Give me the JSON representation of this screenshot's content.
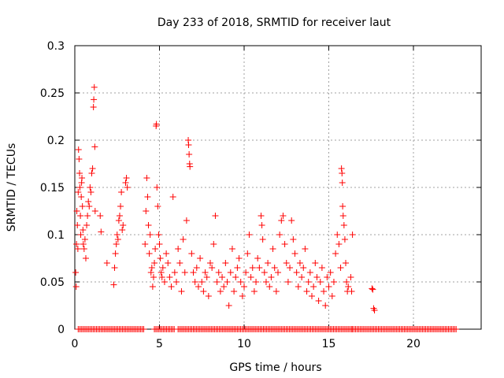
{
  "chart_data": {
    "type": "scatter",
    "title": "Day 233 of 2018, SRMTID for receiver laut",
    "xlabel": "GPS time / hours",
    "ylabel": "SRMTID / TECUs",
    "xlim": [
      0,
      24
    ],
    "ylim": [
      0,
      0.3
    ],
    "xticks": [
      0,
      5,
      10,
      15,
      20
    ],
    "xtick_labels": [
      "0",
      "5",
      "10",
      "15",
      "20"
    ],
    "yticks": [
      0,
      0.05,
      0.1,
      0.15,
      0.2,
      0.25,
      0.3
    ],
    "ytick_labels": [
      "0",
      "0.05",
      "0.1",
      "0.15",
      "0.2",
      "0.25",
      "0.3"
    ],
    "grid": true,
    "marker": "+",
    "color": "#ff0000",
    "series": [
      {
        "name": "SRMTID",
        "points": [
          [
            0.05,
            0.06
          ],
          [
            0.08,
            0.045
          ],
          [
            0.1,
            0.09
          ],
          [
            0.12,
            0.125
          ],
          [
            0.15,
            0.11
          ],
          [
            0.18,
            0.085
          ],
          [
            0.2,
            0.145
          ],
          [
            0.22,
            0.19
          ],
          [
            0.25,
            0.18
          ],
          [
            0.28,
            0.165
          ],
          [
            0.3,
            0.15
          ],
          [
            0.33,
            0.12
          ],
          [
            0.35,
            0.1
          ],
          [
            0.38,
            0.14
          ],
          [
            0.4,
            0.155
          ],
          [
            0.42,
            0.16
          ],
          [
            0.45,
            0.13
          ],
          [
            0.48,
            0.105
          ],
          [
            0.5,
            0.09
          ],
          [
            0.55,
            0.085
          ],
          [
            0.6,
            0.095
          ],
          [
            0.65,
            0.075
          ],
          [
            0.7,
            0.11
          ],
          [
            0.75,
            0.12
          ],
          [
            0.8,
            0.135
          ],
          [
            0.85,
            0.13
          ],
          [
            0.9,
            0.15
          ],
          [
            0.95,
            0.145
          ],
          [
            1.0,
            0.165
          ],
          [
            1.05,
            0.17
          ],
          [
            1.1,
            0.235
          ],
          [
            1.12,
            0.243
          ],
          [
            1.15,
            0.256
          ],
          [
            1.18,
            0.193
          ],
          [
            1.2,
            0.125
          ],
          [
            1.5,
            0.12
          ],
          [
            1.55,
            0.103
          ],
          [
            1.9,
            0.07
          ],
          [
            2.3,
            0.047
          ],
          [
            2.35,
            0.065
          ],
          [
            2.4,
            0.08
          ],
          [
            2.45,
            0.09
          ],
          [
            2.5,
            0.1
          ],
          [
            2.55,
            0.095
          ],
          [
            2.6,
            0.115
          ],
          [
            2.65,
            0.12
          ],
          [
            2.7,
            0.13
          ],
          [
            2.75,
            0.145
          ],
          [
            2.8,
            0.105
          ],
          [
            2.85,
            0.11
          ],
          [
            3.0,
            0.155
          ],
          [
            3.05,
            0.16
          ],
          [
            3.1,
            0.15
          ],
          [
            4.15,
            0.09
          ],
          [
            4.2,
            0.125
          ],
          [
            4.25,
            0.16
          ],
          [
            4.3,
            0.14
          ],
          [
            4.35,
            0.11
          ],
          [
            4.4,
            0.08
          ],
          [
            4.45,
            0.1
          ],
          [
            4.5,
            0.06
          ],
          [
            4.55,
            0.065
          ],
          [
            4.6,
            0.045
          ],
          [
            4.65,
            0.055
          ],
          [
            4.7,
            0.07
          ],
          [
            4.75,
            0.085
          ],
          [
            4.8,
            0.215
          ],
          [
            4.82,
            0.217
          ],
          [
            4.85,
            0.15
          ],
          [
            4.9,
            0.13
          ],
          [
            4.95,
            0.1
          ],
          [
            5.0,
            0.09
          ],
          [
            5.05,
            0.075
          ],
          [
            5.1,
            0.06
          ],
          [
            5.15,
            0.055
          ],
          [
            5.2,
            0.065
          ],
          [
            5.3,
            0.05
          ],
          [
            5.4,
            0.08
          ],
          [
            5.5,
            0.07
          ],
          [
            5.6,
            0.055
          ],
          [
            5.7,
            0.045
          ],
          [
            5.8,
            0.14
          ],
          [
            5.9,
            0.06
          ],
          [
            6.0,
            0.05
          ],
          [
            6.1,
            0.085
          ],
          [
            6.2,
            0.07
          ],
          [
            6.3,
            0.04
          ],
          [
            6.4,
            0.095
          ],
          [
            6.5,
            0.06
          ],
          [
            6.6,
            0.115
          ],
          [
            6.7,
            0.2
          ],
          [
            6.72,
            0.195
          ],
          [
            6.75,
            0.185
          ],
          [
            6.78,
            0.175
          ],
          [
            6.8,
            0.172
          ],
          [
            6.9,
            0.08
          ],
          [
            7.0,
            0.06
          ],
          [
            7.1,
            0.05
          ],
          [
            7.2,
            0.065
          ],
          [
            7.3,
            0.045
          ],
          [
            7.4,
            0.075
          ],
          [
            7.5,
            0.05
          ],
          [
            7.6,
            0.04
          ],
          [
            7.7,
            0.06
          ],
          [
            7.8,
            0.055
          ],
          [
            7.9,
            0.035
          ],
          [
            8.0,
            0.07
          ],
          [
            8.1,
            0.065
          ],
          [
            8.2,
            0.09
          ],
          [
            8.3,
            0.12
          ],
          [
            8.4,
            0.05
          ],
          [
            8.5,
            0.06
          ],
          [
            8.6,
            0.04
          ],
          [
            8.7,
            0.055
          ],
          [
            8.8,
            0.045
          ],
          [
            8.9,
            0.07
          ],
          [
            9.0,
            0.05
          ],
          [
            9.1,
            0.025
          ],
          [
            9.2,
            0.06
          ],
          [
            9.3,
            0.085
          ],
          [
            9.4,
            0.04
          ],
          [
            9.5,
            0.055
          ],
          [
            9.6,
            0.065
          ],
          [
            9.7,
            0.075
          ],
          [
            9.8,
            0.05
          ],
          [
            9.9,
            0.035
          ],
          [
            10.0,
            0.045
          ],
          [
            10.1,
            0.06
          ],
          [
            10.2,
            0.08
          ],
          [
            10.3,
            0.1
          ],
          [
            10.4,
            0.055
          ],
          [
            10.5,
            0.065
          ],
          [
            10.6,
            0.04
          ],
          [
            10.7,
            0.05
          ],
          [
            10.8,
            0.075
          ],
          [
            10.9,
            0.065
          ],
          [
            11.0,
            0.12
          ],
          [
            11.05,
            0.11
          ],
          [
            11.1,
            0.095
          ],
          [
            11.2,
            0.06
          ],
          [
            11.3,
            0.05
          ],
          [
            11.4,
            0.07
          ],
          [
            11.5,
            0.045
          ],
          [
            11.6,
            0.055
          ],
          [
            11.7,
            0.085
          ],
          [
            11.8,
            0.065
          ],
          [
            11.9,
            0.04
          ],
          [
            12.0,
            0.06
          ],
          [
            12.1,
            0.1
          ],
          [
            12.2,
            0.115
          ],
          [
            12.3,
            0.12
          ],
          [
            12.4,
            0.09
          ],
          [
            12.5,
            0.07
          ],
          [
            12.6,
            0.05
          ],
          [
            12.7,
            0.065
          ],
          [
            12.8,
            0.115
          ],
          [
            12.9,
            0.095
          ],
          [
            13.0,
            0.08
          ],
          [
            13.1,
            0.06
          ],
          [
            13.2,
            0.045
          ],
          [
            13.3,
            0.07
          ],
          [
            13.4,
            0.055
          ],
          [
            13.5,
            0.065
          ],
          [
            13.6,
            0.085
          ],
          [
            13.7,
            0.04
          ],
          [
            13.8,
            0.05
          ],
          [
            13.9,
            0.06
          ],
          [
            14.0,
            0.035
          ],
          [
            14.1,
            0.045
          ],
          [
            14.2,
            0.07
          ],
          [
            14.3,
            0.055
          ],
          [
            14.4,
            0.03
          ],
          [
            14.5,
            0.05
          ],
          [
            14.6,
            0.065
          ],
          [
            14.7,
            0.04
          ],
          [
            14.8,
            0.025
          ],
          [
            14.9,
            0.055
          ],
          [
            15.0,
            0.045
          ],
          [
            15.1,
            0.06
          ],
          [
            15.2,
            0.035
          ],
          [
            15.3,
            0.05
          ],
          [
            15.4,
            0.08
          ],
          [
            15.5,
            0.1
          ],
          [
            15.6,
            0.09
          ],
          [
            15.7,
            0.065
          ],
          [
            15.75,
            0.17
          ],
          [
            15.78,
            0.165
          ],
          [
            15.8,
            0.155
          ],
          [
            15.82,
            0.13
          ],
          [
            15.85,
            0.12
          ],
          [
            15.9,
            0.11
          ],
          [
            15.95,
            0.095
          ],
          [
            16.0,
            0.07
          ],
          [
            16.05,
            0.05
          ],
          [
            16.1,
            0.04
          ],
          [
            16.15,
            0.045
          ],
          [
            16.3,
            0.055
          ],
          [
            16.35,
            0.04
          ],
          [
            16.4,
            0.1
          ],
          [
            17.55,
            0.043
          ],
          [
            17.6,
            0.042
          ],
          [
            17.65,
            0.022
          ],
          [
            17.7,
            0.02
          ]
        ]
      }
    ],
    "zero_baseline_x_ranges": [
      [
        0.2,
        4.1
      ],
      [
        4.7,
        5.9
      ],
      [
        6.1,
        16.4
      ],
      [
        16.4,
        22.6
      ]
    ]
  }
}
